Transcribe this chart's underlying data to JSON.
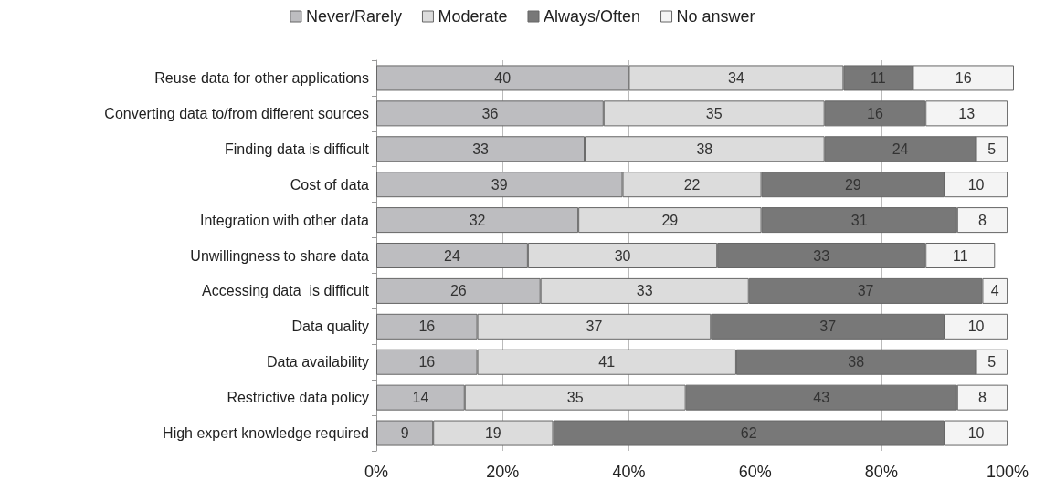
{
  "chart_data": {
    "type": "bar",
    "orientation": "horizontal",
    "stacked": true,
    "data_labels": true,
    "grid": "x",
    "legend": "top",
    "categories": [
      "Reuse data for other applications",
      "Converting data to/from different sources",
      "Finding data is difficult",
      "Cost of data",
      "Integration with other data",
      "Unwillingness to share data",
      "Accessing data  is difficult",
      "Data quality",
      "Data availability",
      "Restrictive data policy",
      "High expert knowledge required"
    ],
    "series": [
      {
        "name": "Never/Rarely",
        "color": "#bdbdc0",
        "values": [
          40,
          36,
          33,
          39,
          32,
          24,
          26,
          16,
          16,
          14,
          9
        ]
      },
      {
        "name": "Moderate",
        "color": "#dcdcdc",
        "values": [
          34,
          35,
          38,
          22,
          29,
          30,
          33,
          37,
          41,
          35,
          19
        ]
      },
      {
        "name": "Always/Often",
        "color": "#787878",
        "values": [
          11,
          16,
          24,
          29,
          31,
          33,
          37,
          37,
          38,
          43,
          62
        ]
      },
      {
        "name": "No answer",
        "color": "#f4f4f4",
        "values": [
          16,
          13,
          5,
          10,
          8,
          11,
          4,
          10,
          5,
          8,
          10
        ]
      }
    ],
    "xlim": [
      0,
      101
    ],
    "xticks": [
      {
        "value": 0,
        "label": "0%"
      },
      {
        "value": 20,
        "label": "20%"
      },
      {
        "value": 40,
        "label": "40%"
      },
      {
        "value": 60,
        "label": "60%"
      },
      {
        "value": 80,
        "label": "80%"
      },
      {
        "value": 100,
        "label": "100%"
      }
    ]
  }
}
